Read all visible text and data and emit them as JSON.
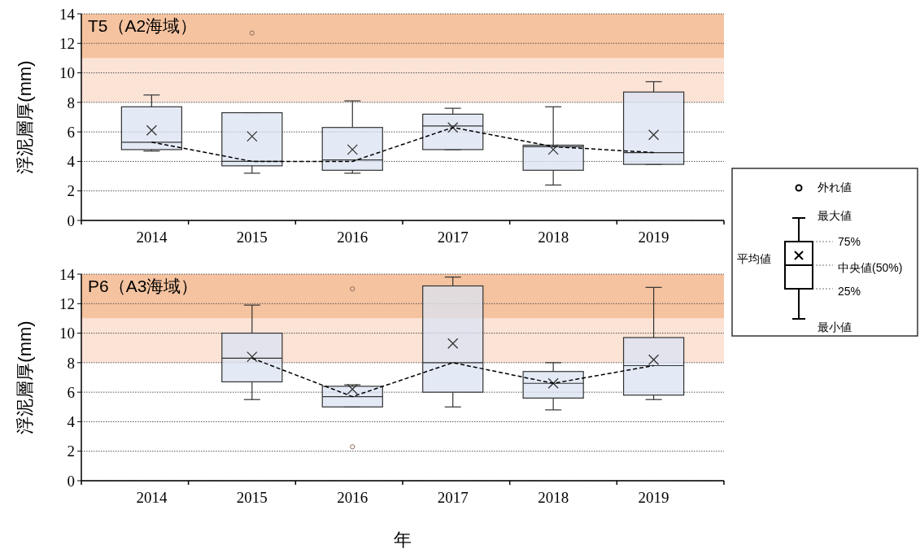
{
  "chart_data": [
    {
      "type": "box",
      "title": "T5（A2海域）",
      "ylabel": "浮泥層厚(mm)",
      "categories": [
        "2014",
        "2015",
        "2016",
        "2017",
        "2018",
        "2019"
      ],
      "color": "#dae3f3",
      "boxes": [
        {
          "low": 4.7,
          "q1": 4.8,
          "median": 5.3,
          "q3": 7.7,
          "high": 8.5,
          "mean": 6.1
        },
        {
          "low": 3.2,
          "q1": 3.7,
          "median": 4.0,
          "q3": 7.3,
          "high": 7.3,
          "mean": 5.7,
          "outliers": [
            12.7
          ]
        },
        {
          "low": 3.2,
          "q1": 3.4,
          "median": 4.1,
          "q3": 6.3,
          "high": 8.1,
          "mean": 4.8
        },
        {
          "low": 4.8,
          "q1": 4.8,
          "median": 6.4,
          "q3": 7.2,
          "high": 7.6,
          "mean": 6.3
        },
        {
          "low": 2.4,
          "q1": 3.4,
          "median": 5.0,
          "q3": 5.1,
          "high": 7.7,
          "mean": 4.8
        },
        {
          "low": 3.8,
          "q1": 3.8,
          "median": 4.6,
          "q3": 8.7,
          "high": 9.4,
          "mean": 5.8
        }
      ],
      "series": [
        {
          "type": "line",
          "values": [
            5.3,
            4.0,
            4.0,
            6.3,
            5.0,
            4.6
          ],
          "color": "#000000"
        }
      ],
      "line_style": "dashed",
      "marker": "none",
      "ylim": [
        0,
        14
      ],
      "yticks": [
        0,
        2,
        4,
        6,
        8,
        10,
        12,
        14
      ],
      "grid": "y",
      "bands": [
        {
          "axis": "y",
          "from": 8,
          "to": 11,
          "color": "#fbe3d6"
        },
        {
          "axis": "y",
          "from": 11,
          "to": 14,
          "color": "#f5c3a0"
        }
      ]
    },
    {
      "type": "box",
      "title": "P6（A3海域）",
      "ylabel": "浮泥層厚(mm)",
      "xlabel": "年",
      "categories": [
        "2014",
        "2015",
        "2016",
        "2017",
        "2018",
        "2019"
      ],
      "color": "#dae3f3",
      "boxes": [
        null,
        {
          "low": 5.5,
          "q1": 6.7,
          "median": 8.3,
          "q3": 10.0,
          "high": 11.9,
          "mean": 8.4
        },
        {
          "low": 5.0,
          "q1": 5.0,
          "median": 5.7,
          "q3": 6.4,
          "high": 6.5,
          "mean": 6.2,
          "outliers": [
            13.0,
            2.3
          ]
        },
        {
          "low": 5.0,
          "q1": 6.0,
          "median": 8.0,
          "q3": 13.2,
          "high": 13.8,
          "mean": 9.3
        },
        {
          "low": 4.8,
          "q1": 5.6,
          "median": 6.6,
          "q3": 7.4,
          "high": 8.0,
          "mean": 6.6
        },
        {
          "low": 5.5,
          "q1": 5.8,
          "median": 7.8,
          "q3": 9.7,
          "high": 13.1,
          "mean": 8.2
        }
      ],
      "series": [
        {
          "type": "line",
          "values": [
            null,
            8.3,
            5.7,
            8.0,
            6.6,
            7.8
          ],
          "color": "#000000"
        }
      ],
      "line_style": "dashed",
      "marker": "none",
      "ylim": [
        0,
        14
      ],
      "yticks": [
        0,
        2,
        4,
        6,
        8,
        10,
        12,
        14
      ],
      "grid": "y",
      "bands": [
        {
          "axis": "y",
          "from": 8,
          "to": 11,
          "color": "#fbe3d6"
        },
        {
          "axis": "y",
          "from": 11,
          "to": 14,
          "color": "#f5c3a0"
        }
      ]
    },
    {
      "type": "other",
      "annotations": [
        "外れ値",
        "最大値",
        "75%",
        "平均値",
        "中央値(50%)",
        "25%",
        "最小値"
      ]
    }
  ]
}
